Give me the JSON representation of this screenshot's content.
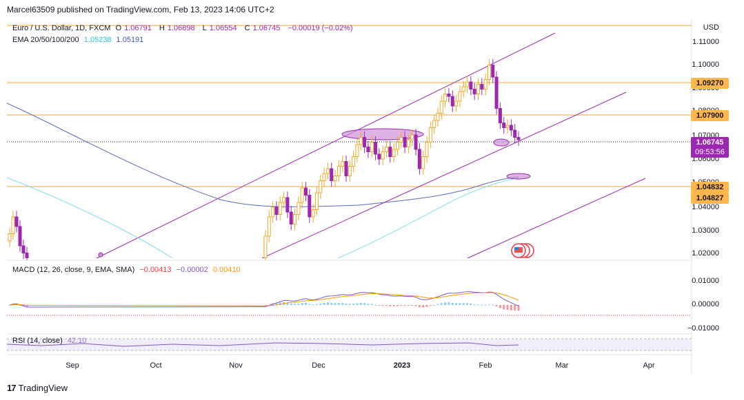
{
  "caption": "Marcel63509 published on TradingView.com, Feb 13, 2023 14:06 UTC+2",
  "legend": {
    "symbol": "Euro / U.S. Dollar, 1D, FXCM",
    "open_label": "O",
    "open": "1.06791",
    "high_label": "H",
    "high": "1.06898",
    "low_label": "L",
    "low": "1.06554",
    "close_label": "C",
    "close": "1.06745",
    "change": "−0.00019 (−0.02%)",
    "ema_label": "EMA 20/50/100/200",
    "ema_values": [
      "1.05238",
      "1.05191"
    ]
  },
  "macd": {
    "label": "MACD (12, 26, close, 9, EMA, SMA)",
    "values": [
      "−0.00413",
      "−0.00002",
      "0.00410"
    ]
  },
  "rsi": {
    "label": "RSI (14, close)",
    "value": "42.10"
  },
  "axis": {
    "currency": "USD",
    "price_ticks": [
      "1.11000",
      "1.10000",
      "1.09000",
      "1.08000",
      "1.07000",
      "1.06000",
      "1.05000",
      "1.04000",
      "1.03000",
      "1.02000"
    ],
    "macd_ticks": [
      "0.01000",
      "0.00000",
      "−0.01000"
    ],
    "price_tags": {
      "r1": "1.09270",
      "r2": "1.07900",
      "last": "1.06745",
      "countdown": "09:53:56",
      "s1": "1.04832",
      "s2": "1.04827"
    },
    "months": [
      "Sep",
      "Oct",
      "Nov",
      "Dec",
      "2023",
      "Feb",
      "Mar",
      "Apr"
    ]
  },
  "footer": {
    "brand": "TradingView"
  },
  "colors": {
    "up": "#f5a623",
    "down": "#9c27b0",
    "channel": "#9c27b0",
    "hline": "#f5a623",
    "ema_fast": "#80deea",
    "ema_slow": "#5c6bc0",
    "macd_line": "#7e57c2",
    "signal": "#ff9800"
  },
  "chart_data": {
    "type": "candlestick",
    "title": "Euro / U.S. Dollar, 1D, FXCM",
    "ylabel": "USD",
    "ylim": [
      1.017,
      1.117
    ],
    "horizontal_levels": [
      1.0927,
      1.079,
      1.04832,
      1.04827
    ],
    "last_price": 1.06745,
    "x_months": [
      "Sep",
      "Oct",
      "Nov",
      "Dec",
      "2023",
      "Feb",
      "Mar",
      "Apr"
    ],
    "candles_close_approx": [
      1.028,
      1.035,
      1.031,
      1.023,
      1.02,
      1.018,
      1.027,
      1.035,
      1.039,
      1.036,
      1.041,
      1.043,
      1.037,
      1.032,
      1.036,
      1.041,
      1.047,
      1.044,
      1.035,
      1.038,
      1.045,
      1.05,
      1.053,
      1.055,
      1.05,
      1.052,
      1.056,
      1.058,
      1.052,
      1.056,
      1.06,
      1.065,
      1.068,
      1.064,
      1.062,
      1.066,
      1.061,
      1.059,
      1.062,
      1.064,
      1.06,
      1.063,
      1.066,
      1.068,
      1.064,
      1.067,
      1.069,
      1.063,
      1.055,
      1.06,
      1.066,
      1.072,
      1.075,
      1.078,
      1.083,
      1.086,
      1.085,
      1.081,
      1.083,
      1.087,
      1.089,
      1.091,
      1.088,
      1.086,
      1.09,
      1.088,
      1.092,
      1.098,
      1.093,
      1.08,
      1.074,
      1.072,
      1.073,
      1.071,
      1.068,
      1.067
    ]
  }
}
